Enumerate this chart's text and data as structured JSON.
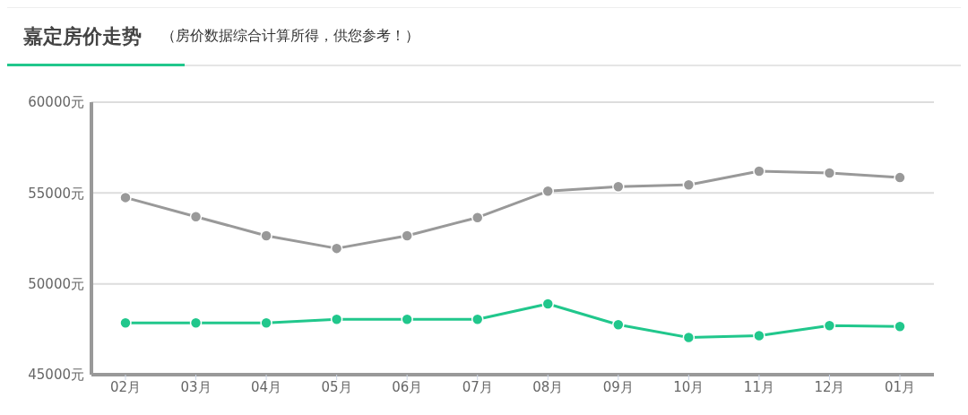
{
  "chart_data": {
    "type": "line",
    "title": "嘉定房价走势",
    "subtitle": "（房价数据综合计算所得，供您参考！）",
    "categories": [
      "02月",
      "03月",
      "04月",
      "05月",
      "06月",
      "07月",
      "08月",
      "09月",
      "10月",
      "11月",
      "12月",
      "01月"
    ],
    "series": [
      {
        "color": "#999999",
        "values": [
          54750,
          53700,
          52650,
          51950,
          52650,
          53650,
          55100,
          55350,
          55450,
          56200,
          56100,
          55850
        ]
      },
      {
        "color": "#21c78c",
        "values": [
          47850,
          47850,
          47850,
          48050,
          48050,
          48050,
          48900,
          47750,
          47050,
          47150,
          47700,
          47650
        ]
      }
    ],
    "ylim": [
      45000,
      60000
    ],
    "yticks": [
      {
        "value": 45000,
        "label": "45000元"
      },
      {
        "value": 50000,
        "label": "50000元"
      },
      {
        "value": 55000,
        "label": "55000元"
      },
      {
        "value": 60000,
        "label": "60000元"
      }
    ],
    "grid": "y",
    "marker": "circle",
    "line_style": "solid",
    "legend": false
  }
}
